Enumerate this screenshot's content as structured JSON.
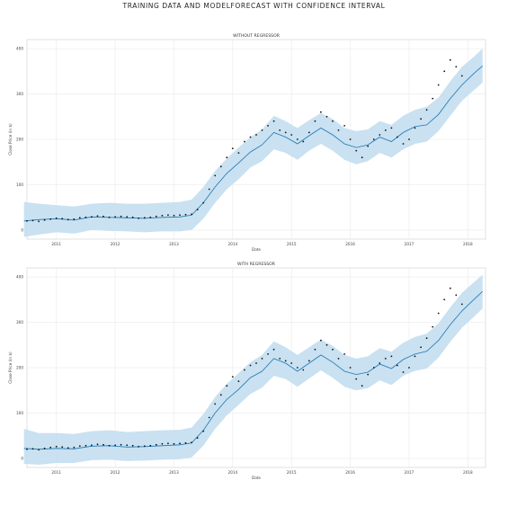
{
  "page_title": "TRAINING DATA AND MODELFORECAST WITH CONFIDENCE INTERVAL",
  "chart_data": [
    {
      "type": "line",
      "title": "WITHOUT REGRESSOR",
      "xlabel": "Date",
      "ylabel": "Close Price (in $)",
      "xlim": [
        2010.5,
        2018.3
      ],
      "ylim": [
        -20,
        420
      ],
      "x_ticks": [
        2011,
        2012,
        2013,
        2014,
        2015,
        2016,
        2017,
        2018
      ],
      "x_tick_labels": [
        "2011",
        "2012",
        "2013",
        "2014",
        "2015",
        "2016",
        "2017",
        "2018"
      ],
      "y_ticks": [
        0,
        100,
        200,
        300,
        400
      ],
      "y_tick_labels": [
        "0",
        "100",
        "200",
        "300",
        "400"
      ],
      "grid": true,
      "series": [
        {
          "name": "forecast",
          "x": [
            2010.45,
            2010.7,
            2011.0,
            2011.3,
            2011.6,
            2011.9,
            2012.2,
            2012.5,
            2012.8,
            2013.1,
            2013.3,
            2013.5,
            2013.7,
            2013.9,
            2014.1,
            2014.3,
            2014.5,
            2014.7,
            2014.9,
            2015.1,
            2015.3,
            2015.5,
            2015.7,
            2015.9,
            2016.1,
            2016.3,
            2016.5,
            2016.7,
            2016.9,
            2017.1,
            2017.3,
            2017.5,
            2017.7,
            2017.9,
            2018.1,
            2018.25
          ],
          "values": [
            20,
            23,
            25,
            22,
            29,
            28,
            27,
            26,
            28,
            29,
            33,
            60,
            95,
            125,
            148,
            172,
            188,
            215,
            205,
            190,
            208,
            225,
            210,
            190,
            182,
            188,
            205,
            195,
            215,
            228,
            232,
            255,
            290,
            320,
            345,
            362
          ]
        },
        {
          "name": "confidence_upper",
          "x": [
            2010.45,
            2010.7,
            2011.0,
            2011.3,
            2011.6,
            2011.9,
            2012.2,
            2012.5,
            2012.8,
            2013.1,
            2013.3,
            2013.5,
            2013.7,
            2013.9,
            2014.1,
            2014.3,
            2014.5,
            2014.7,
            2014.9,
            2015.1,
            2015.3,
            2015.5,
            2015.7,
            2015.9,
            2016.1,
            2016.3,
            2016.5,
            2016.7,
            2016.9,
            2017.1,
            2017.3,
            2017.5,
            2017.7,
            2017.9,
            2018.1,
            2018.25
          ],
          "values": [
            62,
            58,
            55,
            52,
            58,
            60,
            58,
            58,
            60,
            62,
            67,
            95,
            130,
            158,
            182,
            205,
            222,
            252,
            240,
            225,
            242,
            258,
            245,
            225,
            218,
            222,
            240,
            232,
            252,
            265,
            272,
            292,
            328,
            360,
            382,
            400
          ]
        },
        {
          "name": "confidence_lower",
          "x": [
            2010.45,
            2010.7,
            2011.0,
            2011.3,
            2011.6,
            2011.9,
            2012.2,
            2012.5,
            2012.8,
            2013.1,
            2013.3,
            2013.5,
            2013.7,
            2013.9,
            2014.1,
            2014.3,
            2014.5,
            2014.7,
            2014.9,
            2015.1,
            2015.3,
            2015.5,
            2015.7,
            2015.9,
            2016.1,
            2016.3,
            2016.5,
            2016.7,
            2016.9,
            2017.1,
            2017.3,
            2017.5,
            2017.7,
            2017.9,
            2018.1,
            2018.25
          ],
          "values": [
            -15,
            -10,
            -5,
            -8,
            0,
            -2,
            -3,
            -5,
            -3,
            -3,
            0,
            25,
            60,
            90,
            112,
            138,
            152,
            178,
            170,
            155,
            175,
            190,
            175,
            155,
            145,
            152,
            170,
            160,
            178,
            190,
            195,
            218,
            252,
            285,
            308,
            325
          ]
        },
        {
          "name": "training_data",
          "x": [
            2010.5,
            2010.6,
            2010.7,
            2010.8,
            2010.9,
            2011.0,
            2011.1,
            2011.2,
            2011.3,
            2011.4,
            2011.5,
            2011.6,
            2011.7,
            2011.8,
            2011.9,
            2012.0,
            2012.1,
            2012.2,
            2012.3,
            2012.4,
            2012.5,
            2012.6,
            2012.7,
            2012.8,
            2012.9,
            2013.0,
            2013.1,
            2013.2,
            2013.3,
            2013.4,
            2013.5,
            2013.6,
            2013.7,
            2013.8,
            2013.9,
            2014.0,
            2014.1,
            2014.2,
            2014.3,
            2014.4,
            2014.5,
            2014.6,
            2014.7,
            2014.8,
            2014.9,
            2015.0,
            2015.1,
            2015.2,
            2015.3,
            2015.4,
            2015.5,
            2015.6,
            2015.7,
            2015.8,
            2015.9,
            2016.0,
            2016.1,
            2016.2,
            2016.3,
            2016.4,
            2016.5,
            2016.6,
            2016.7,
            2016.8,
            2016.9,
            2017.0,
            2017.1,
            2017.2,
            2017.3,
            2017.4,
            2017.5,
            2017.6,
            2017.7,
            2017.8,
            2017.9
          ],
          "values": [
            20,
            21,
            19,
            22,
            24,
            26,
            25,
            23,
            24,
            27,
            28,
            29,
            31,
            30,
            28,
            29,
            30,
            29,
            28,
            26,
            27,
            28,
            30,
            32,
            33,
            32,
            33,
            34,
            35,
            45,
            60,
            90,
            120,
            140,
            160,
            180,
            170,
            195,
            205,
            210,
            220,
            230,
            240,
            220,
            215,
            210,
            200,
            195,
            215,
            240,
            260,
            250,
            240,
            220,
            230,
            200,
            175,
            160,
            185,
            200,
            210,
            220,
            225,
            205,
            190,
            200,
            225,
            245,
            265,
            290,
            320,
            350,
            375,
            360,
            340
          ]
        }
      ]
    },
    {
      "type": "line",
      "title": "WITH REGRESSOR",
      "xlabel": "Date",
      "ylabel": "Close Price (in $)",
      "xlim": [
        2010.5,
        2018.3
      ],
      "ylim": [
        -20,
        420
      ],
      "x_ticks": [
        2011,
        2012,
        2013,
        2014,
        2015,
        2016,
        2017,
        2018
      ],
      "x_tick_labels": [
        "2011",
        "2012",
        "2013",
        "2014",
        "2015",
        "2016",
        "2017",
        "2018"
      ],
      "y_ticks": [
        0,
        100,
        200,
        300,
        400
      ],
      "y_tick_labels": [
        "0",
        "100",
        "200",
        "300",
        "400"
      ],
      "grid": true,
      "series": [
        {
          "name": "forecast",
          "x": [
            2010.45,
            2010.7,
            2011.0,
            2011.3,
            2011.6,
            2011.9,
            2012.2,
            2012.5,
            2012.8,
            2013.1,
            2013.3,
            2013.5,
            2013.7,
            2013.9,
            2014.1,
            2014.3,
            2014.5,
            2014.7,
            2014.9,
            2015.1,
            2015.3,
            2015.5,
            2015.7,
            2015.9,
            2016.1,
            2016.3,
            2016.5,
            2016.7,
            2016.9,
            2017.1,
            2017.3,
            2017.5,
            2017.7,
            2017.9,
            2018.1,
            2018.25
          ],
          "values": [
            22,
            20,
            22,
            21,
            27,
            28,
            25,
            26,
            28,
            30,
            34,
            62,
            100,
            130,
            152,
            178,
            192,
            220,
            210,
            192,
            210,
            228,
            212,
            192,
            185,
            190,
            208,
            198,
            218,
            230,
            236,
            260,
            295,
            325,
            350,
            368
          ]
        },
        {
          "name": "confidence_upper",
          "x": [
            2010.45,
            2010.7,
            2011.0,
            2011.3,
            2011.6,
            2011.9,
            2012.2,
            2012.5,
            2012.8,
            2013.1,
            2013.3,
            2013.5,
            2013.7,
            2013.9,
            2014.1,
            2014.3,
            2014.5,
            2014.7,
            2014.9,
            2015.1,
            2015.3,
            2015.5,
            2015.7,
            2015.9,
            2016.1,
            2016.3,
            2016.5,
            2016.7,
            2016.9,
            2017.1,
            2017.3,
            2017.5,
            2017.7,
            2017.9,
            2018.1,
            2018.25
          ],
          "values": [
            65,
            56,
            56,
            54,
            60,
            62,
            58,
            60,
            62,
            63,
            68,
            98,
            135,
            165,
            188,
            212,
            228,
            258,
            245,
            228,
            245,
            262,
            248,
            228,
            220,
            225,
            243,
            235,
            255,
            268,
            275,
            298,
            333,
            365,
            388,
            405
          ]
        },
        {
          "name": "confidence_lower",
          "x": [
            2010.45,
            2010.7,
            2011.0,
            2011.3,
            2011.6,
            2011.9,
            2012.2,
            2012.5,
            2012.8,
            2013.1,
            2013.3,
            2013.5,
            2013.7,
            2013.9,
            2014.1,
            2014.3,
            2014.5,
            2014.7,
            2014.9,
            2015.1,
            2015.3,
            2015.5,
            2015.7,
            2015.9,
            2016.1,
            2016.3,
            2016.5,
            2016.7,
            2016.9,
            2017.1,
            2017.3,
            2017.5,
            2017.7,
            2017.9,
            2018.1,
            2018.25
          ],
          "values": [
            -12,
            -14,
            -10,
            -10,
            -4,
            -3,
            -6,
            -5,
            -3,
            -2,
            2,
            28,
            65,
            95,
            118,
            142,
            156,
            182,
            175,
            158,
            176,
            194,
            178,
            158,
            150,
            155,
            172,
            162,
            182,
            193,
            198,
            222,
            257,
            288,
            312,
            330
          ]
        },
        {
          "name": "training_data",
          "x": [
            2010.5,
            2010.6,
            2010.7,
            2010.8,
            2010.9,
            2011.0,
            2011.1,
            2011.2,
            2011.3,
            2011.4,
            2011.5,
            2011.6,
            2011.7,
            2011.8,
            2011.9,
            2012.0,
            2012.1,
            2012.2,
            2012.3,
            2012.4,
            2012.5,
            2012.6,
            2012.7,
            2012.8,
            2012.9,
            2013.0,
            2013.1,
            2013.2,
            2013.3,
            2013.4,
            2013.5,
            2013.6,
            2013.7,
            2013.8,
            2013.9,
            2014.0,
            2014.1,
            2014.2,
            2014.3,
            2014.4,
            2014.5,
            2014.6,
            2014.7,
            2014.8,
            2014.9,
            2015.0,
            2015.1,
            2015.2,
            2015.3,
            2015.4,
            2015.5,
            2015.6,
            2015.7,
            2015.8,
            2015.9,
            2016.0,
            2016.1,
            2016.2,
            2016.3,
            2016.4,
            2016.5,
            2016.6,
            2016.7,
            2016.8,
            2016.9,
            2017.0,
            2017.1,
            2017.2,
            2017.3,
            2017.4,
            2017.5,
            2017.6,
            2017.7,
            2017.8,
            2017.9
          ],
          "values": [
            20,
            21,
            19,
            22,
            24,
            26,
            25,
            23,
            24,
            27,
            28,
            29,
            31,
            30,
            28,
            29,
            30,
            29,
            28,
            26,
            27,
            28,
            30,
            32,
            33,
            32,
            33,
            34,
            35,
            45,
            60,
            90,
            120,
            140,
            160,
            180,
            170,
            195,
            205,
            210,
            220,
            230,
            240,
            220,
            215,
            210,
            200,
            195,
            215,
            240,
            260,
            250,
            240,
            220,
            230,
            200,
            175,
            160,
            185,
            200,
            210,
            220,
            225,
            205,
            190,
            200,
            225,
            245,
            265,
            290,
            320,
            350,
            375,
            360,
            340
          ]
        }
      ]
    }
  ],
  "colors": {
    "forecast_line": "#1f77b4",
    "confidence_band": "#c6dff0",
    "training_points": "#111111",
    "grid": "#e6e6e6",
    "frame": "#cccccc"
  }
}
